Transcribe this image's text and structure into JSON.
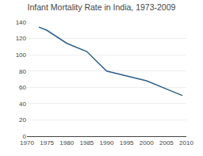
{
  "chart_data": {
    "type": "line",
    "title": "Infant Mortality Rate in India, 1973-2009",
    "x": [
      1973,
      1975,
      1980,
      1985,
      1990,
      1995,
      2000,
      2005,
      2009
    ],
    "values": [
      134,
      130,
      114,
      104,
      80,
      74,
      68,
      58,
      50
    ],
    "color": "#2e5f8a",
    "xlim": [
      1970,
      2010
    ],
    "ylim": [
      0,
      140
    ],
    "xticks": [
      1970,
      1975,
      1980,
      1985,
      1990,
      1995,
      2000,
      2005,
      2010
    ],
    "yticks": [
      0,
      20,
      40,
      60,
      80,
      100,
      120,
      140
    ],
    "grid": "y"
  }
}
